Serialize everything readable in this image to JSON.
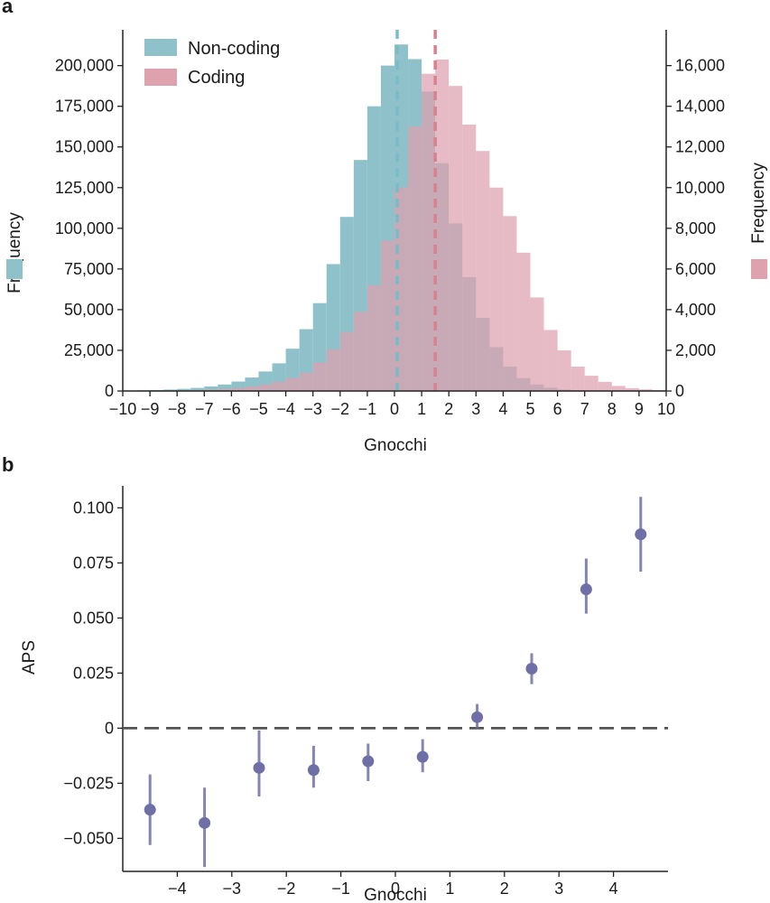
{
  "chart_data": [
    {
      "panel_label": "a",
      "type": "histogram",
      "xlabel": "Gnocchi",
      "ylabel_left": "Frequency",
      "ylabel_right": "Frequency",
      "xlim": [
        -10,
        10
      ],
      "ylim_left": [
        0,
        222000
      ],
      "ylim_right": [
        0,
        17760
      ],
      "x_ticks": [
        -10,
        -9,
        -8,
        -7,
        -6,
        -5,
        -4,
        -3,
        -2,
        -1,
        0,
        1,
        2,
        3,
        4,
        5,
        6,
        7,
        8,
        9,
        10
      ],
      "x_tick_labels": [
        "−10",
        "−9",
        "−8",
        "−7",
        "−6",
        "−5",
        "−4",
        "−3",
        "−2",
        "−1",
        "0",
        "1",
        "2",
        "3",
        "4",
        "5",
        "6",
        "7",
        "8",
        "9",
        "10"
      ],
      "y_ticks_left": [
        0,
        25000,
        50000,
        75000,
        100000,
        125000,
        150000,
        175000,
        200000
      ],
      "y_tick_labels_left": [
        "0",
        "25,000",
        "50,000",
        "75,000",
        "100,000",
        "125,000",
        "150,000",
        "175,000",
        "200,000"
      ],
      "y_ticks_right": [
        0,
        2000,
        4000,
        6000,
        8000,
        10000,
        12000,
        14000,
        16000
      ],
      "y_tick_labels_right": [
        "0",
        "2,000",
        "4,000",
        "6,000",
        "8,000",
        "10,000",
        "12,000",
        "14,000",
        "16,000"
      ],
      "bin_width": 0.5,
      "series": [
        {
          "name": "Non-coding",
          "axis": "left",
          "color": "#8fc1cb",
          "bin_starts": [
            -10,
            -9.5,
            -9,
            -8.5,
            -8,
            -7.5,
            -7,
            -6.5,
            -6,
            -5.5,
            -5,
            -4.5,
            -4,
            -3.5,
            -3,
            -2.5,
            -2,
            -1.5,
            -1,
            -0.5,
            0,
            0.5,
            1,
            1.5,
            2,
            2.5,
            3,
            3.5,
            4,
            4.5,
            5,
            5.5,
            6,
            6.5,
            7,
            7.5,
            8,
            8.5,
            9,
            9.5
          ],
          "values": [
            300,
            400,
            600,
            900,
            1300,
            1900,
            2800,
            4000,
            5800,
            8300,
            12000,
            17000,
            26000,
            38000,
            54000,
            78000,
            107000,
            142000,
            175000,
            200000,
            213000,
            204000,
            184000,
            140000,
            103000,
            70000,
            45000,
            27000,
            15000,
            8000,
            4000,
            2000,
            1000,
            500,
            250,
            150,
            80,
            40,
            20,
            10
          ],
          "median": 0.1,
          "median_line_color": "#79bcc8"
        },
        {
          "name": "Coding",
          "axis": "right",
          "color": "#dea1ae",
          "bin_starts": [
            -10,
            -9.5,
            -9,
            -8.5,
            -8,
            -7.5,
            -7,
            -6.5,
            -6,
            -5.5,
            -5,
            -4.5,
            -4,
            -3.5,
            -3,
            -2.5,
            -2,
            -1.5,
            -1,
            -0.5,
            0,
            0.5,
            1,
            1.5,
            2,
            2.5,
            3,
            3.5,
            4,
            4.5,
            5,
            5.5,
            6,
            6.5,
            7,
            7.5,
            8,
            8.5,
            9,
            9.5
          ],
          "values": [
            5,
            10,
            15,
            25,
            35,
            50,
            70,
            100,
            150,
            220,
            320,
            460,
            650,
            900,
            1400,
            2050,
            2900,
            3900,
            5200,
            7400,
            10000,
            13000,
            15600,
            16300,
            15000,
            13100,
            11800,
            10000,
            8600,
            6800,
            4600,
            3000,
            2000,
            1200,
            750,
            450,
            250,
            140,
            80,
            40
          ],
          "median": 1.5,
          "median_line_color": "#d7838f"
        }
      ],
      "legend": [
        "Non-coding",
        "Coding"
      ],
      "legend_position": "top-left"
    },
    {
      "panel_label": "b",
      "type": "scatter",
      "xlabel": "Gnocchi",
      "ylabel": "APS",
      "xlim": [
        -5,
        5
      ],
      "ylim": [
        -0.065,
        0.11
      ],
      "x_ticks": [
        -4,
        -3,
        -2,
        -1,
        0,
        1,
        2,
        3,
        4
      ],
      "x_tick_labels": [
        "−4",
        "−3",
        "−2",
        "−1",
        "0",
        "1",
        "2",
        "3",
        "4"
      ],
      "y_ticks": [
        -0.05,
        -0.025,
        0,
        0.025,
        0.05,
        0.075,
        0.1
      ],
      "y_tick_labels": [
        "−0.050",
        "−0.025",
        "0",
        "0.025",
        "0.050",
        "0.075",
        "0.100"
      ],
      "color": "#6f6fa8",
      "reference_line_y": 0,
      "x": [
        -4.5,
        -3.5,
        -2.5,
        -1.5,
        -0.5,
        0.5,
        1.5,
        2.5,
        3.5,
        4.5
      ],
      "y": [
        -0.037,
        -0.043,
        -0.018,
        -0.019,
        -0.015,
        -0.013,
        0.005,
        0.027,
        0.063,
        0.088
      ],
      "y_low": [
        -0.053,
        -0.063,
        -0.031,
        -0.027,
        -0.024,
        -0.02,
        0.0,
        0.02,
        0.052,
        0.071
      ],
      "y_high": [
        -0.021,
        -0.027,
        -0.001,
        -0.008,
        -0.007,
        -0.005,
        0.011,
        0.034,
        0.077,
        0.105
      ]
    }
  ]
}
